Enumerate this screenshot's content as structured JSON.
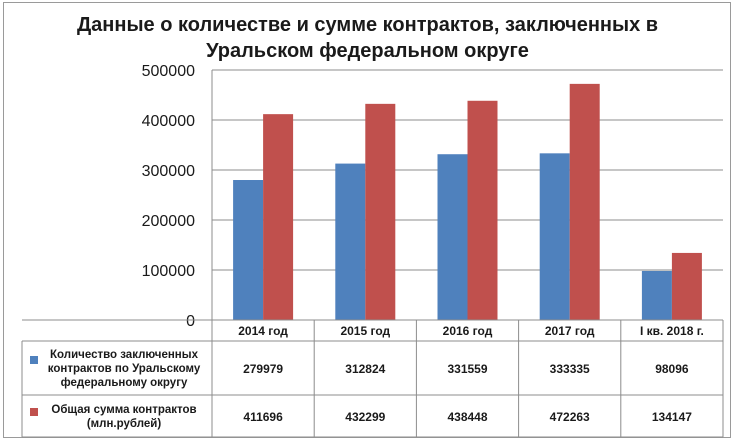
{
  "chart_data": {
    "type": "bar",
    "title_lines": [
      "Данные о количестве и сумме контрактов, заключенных в",
      "Уральском федеральном округе"
    ],
    "categories": [
      "2014 год",
      "2015 год",
      "2016 год",
      "2017 год",
      "I кв. 2018 г."
    ],
    "series": [
      {
        "name_lines": [
          "Количество заключенных",
          "контрактов по Уральскому",
          "федеральному округу"
        ],
        "color": "#4f81bd",
        "values": [
          279979,
          312824,
          331559,
          333335,
          98096
        ]
      },
      {
        "name_lines": [
          "Общая сумма контрактов",
          "(млн.рублей)"
        ],
        "color": "#c0504d",
        "values": [
          411696,
          432299,
          438448,
          472263,
          134147
        ]
      }
    ],
    "yticks": [
      "0",
      "100000",
      "200000",
      "300000",
      "400000",
      "500000"
    ],
    "ylim": [
      0,
      500000
    ],
    "grid": true,
    "legend_placement": "data-table"
  }
}
